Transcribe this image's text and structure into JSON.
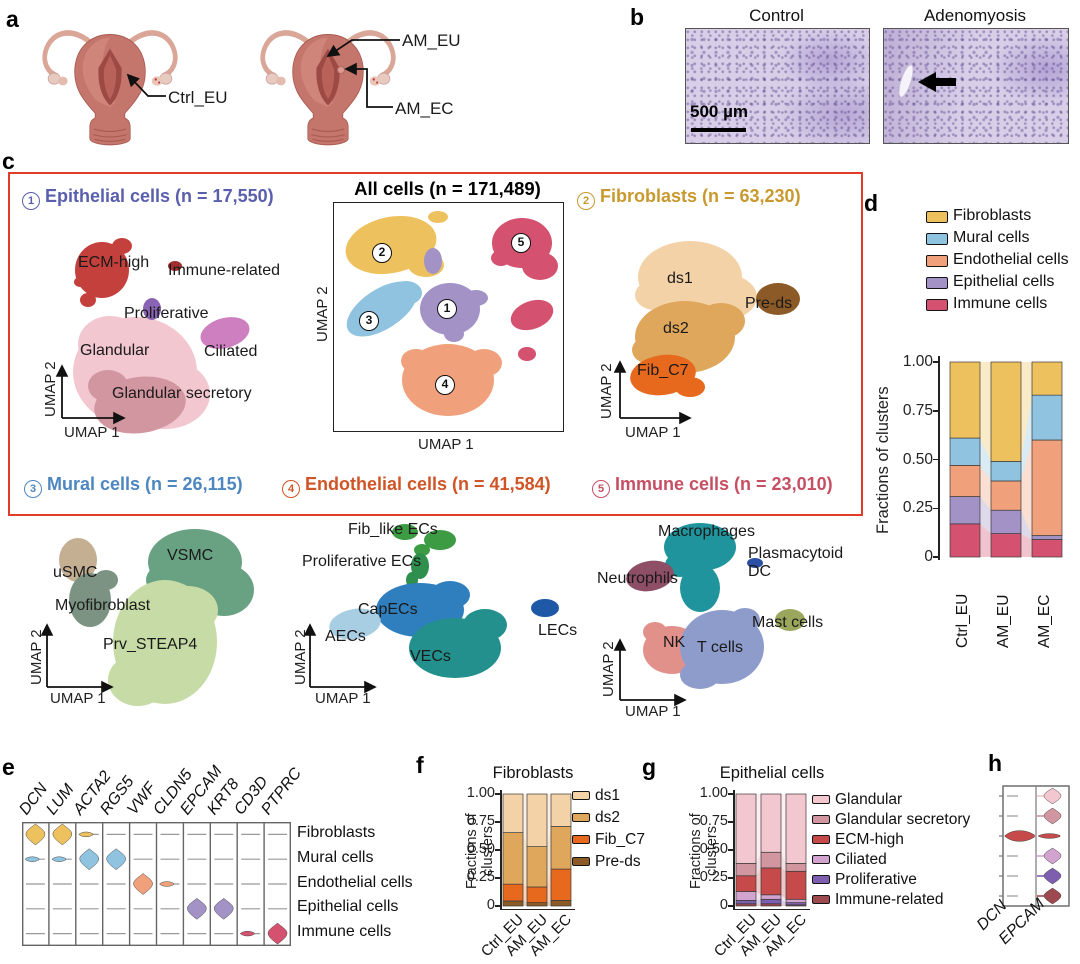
{
  "panel_labels": {
    "a": "a",
    "b": "b",
    "c": "c",
    "d": "d",
    "e": "e",
    "f": "f",
    "g": "g",
    "h": "h"
  },
  "panel_a": {
    "ctrl": "Ctrl_EU",
    "am_eu": "AM_EU",
    "am_ec": "AM_EC"
  },
  "panel_b": {
    "left_title": "Control",
    "right_title": "Adenomyosis",
    "scale_bar": "500 µm"
  },
  "panel_c": {
    "headers": [
      {
        "num": "1",
        "text": "Epithelial cells (n = 17,550)",
        "color": "#5a5fad"
      },
      {
        "num": "2",
        "text": "Fibroblasts (n = 63,230)",
        "color": "#c8992f"
      },
      {
        "num": "3",
        "text": "Mural cells (n = 26,115)",
        "color": "#4e86c0"
      },
      {
        "num": "4",
        "text": "Endothelial cells (n = 41,584)",
        "color": "#cf5527"
      },
      {
        "num": "5",
        "text": "Immune cells (n = 23,010)",
        "color": "#c64f63"
      }
    ],
    "all_cells": {
      "title": "All cells (n = 171,489)",
      "clusters": [
        {
          "num": "1",
          "color": "#a292c5"
        },
        {
          "num": "2",
          "color": "#eec15f"
        },
        {
          "num": "3",
          "color": "#90c3df"
        },
        {
          "num": "4",
          "color": "#f0a17c"
        },
        {
          "num": "5",
          "color": "#d4516f"
        }
      ]
    },
    "axis": {
      "x": "UMAP 1",
      "y": "UMAP 2"
    },
    "epithelial": [
      {
        "label": "ECM-high",
        "color": "#c4403d"
      },
      {
        "label": "Immune-related",
        "color": "#a03030"
      },
      {
        "label": "Proliferative",
        "color": "#8a63b4"
      },
      {
        "label": "Ciliated",
        "color": "#cd7fc0"
      },
      {
        "label": "Glandular",
        "color": "#f2c7d0"
      },
      {
        "label": "Glandular secretory",
        "color": "#d296a0"
      }
    ],
    "fibroblast": [
      {
        "label": "ds1",
        "color": "#f4d2a8"
      },
      {
        "label": "ds2",
        "color": "#dfa75c"
      },
      {
        "label": "Fib_C7",
        "color": "#e7691d"
      },
      {
        "label": "Pre-ds",
        "color": "#8c5a26"
      }
    ],
    "mural": [
      {
        "label": "uSMC",
        "color": "#c4af92"
      },
      {
        "label": "Myofibroblast",
        "color": "#7c9383"
      },
      {
        "label": "VSMC",
        "color": "#69a183"
      },
      {
        "label": "Prv_STEAP4",
        "color": "#c6dba5"
      }
    ],
    "endothelial": [
      {
        "label": "Fib_like ECs",
        "color": "#3d9b43"
      },
      {
        "label": "Proliferative ECs",
        "color": "#2f8f4d"
      },
      {
        "label": "CapECs",
        "color": "#2f7fbf"
      },
      {
        "label": "AECs",
        "color": "#a8cee4"
      },
      {
        "label": "VECs",
        "color": "#23908d"
      },
      {
        "label": "LECs",
        "color": "#2058a8"
      }
    ],
    "immune": [
      {
        "label": "Macrophages",
        "color": "#1f949d"
      },
      {
        "label": "Plasmacytoid DC",
        "color": "#2b4fa2"
      },
      {
        "label": "Neutrophils",
        "color": "#8d4e66"
      },
      {
        "label": "Mast cells",
        "color": "#9aa75c"
      },
      {
        "label": "NK",
        "color": "#e2908a"
      },
      {
        "label": "T cells",
        "color": "#8e9ccb"
      }
    ]
  },
  "chart_data": [
    {
      "id": "d",
      "type": "stacked-bar",
      "title": "",
      "ylabel": "Fractions of clusters",
      "ylim": [
        0,
        1
      ],
      "yticks": [
        "1.00",
        "0.75",
        "0.50",
        "0.25",
        "0"
      ],
      "categories": [
        "Ctrl_EU",
        "AM_EU",
        "AM_EC"
      ],
      "series": [
        {
          "name": "Fibroblasts",
          "color": "#eec15f",
          "values": [
            0.39,
            0.51,
            0.17
          ]
        },
        {
          "name": "Mural cells",
          "color": "#90c3df",
          "values": [
            0.14,
            0.1,
            0.23
          ]
        },
        {
          "name": "Endothelial cells",
          "color": "#f0a17c",
          "values": [
            0.16,
            0.15,
            0.49
          ]
        },
        {
          "name": "Epithelial cells",
          "color": "#a292c5",
          "values": [
            0.14,
            0.12,
            0.02
          ]
        },
        {
          "name": "Immune cells",
          "color": "#d4516f",
          "values": [
            0.17,
            0.12,
            0.09
          ]
        }
      ]
    },
    {
      "id": "f",
      "type": "stacked-bar",
      "title": "Fibroblasts",
      "ylabel": "Fractions of clusters",
      "ylim": [
        0,
        1
      ],
      "yticks": [
        "1.00",
        "0.75",
        "0.50",
        "0.25",
        "0"
      ],
      "categories": [
        "Ctrl_EU",
        "AM_EU",
        "AM_EC"
      ],
      "series": [
        {
          "name": "ds1",
          "color": "#f4d2a8",
          "values": [
            0.345,
            0.47,
            0.29
          ]
        },
        {
          "name": "ds2",
          "color": "#dfa75c",
          "values": [
            0.46,
            0.36,
            0.38
          ]
        },
        {
          "name": "Fib_C7",
          "color": "#e7691d",
          "values": [
            0.15,
            0.14,
            0.28
          ]
        },
        {
          "name": "Pre-ds",
          "color": "#8c5a26",
          "values": [
            0.045,
            0.03,
            0.05
          ]
        }
      ]
    },
    {
      "id": "g",
      "type": "stacked-bar",
      "title": "Epithelial cells",
      "ylabel": "Fractions of clusters",
      "ylim": [
        0,
        1
      ],
      "yticks": [
        "1.00",
        "0.75",
        "0.50",
        "0.25",
        "0"
      ],
      "categories": [
        "Ctrl_EU",
        "AM_EU",
        "AM_EC"
      ],
      "series": [
        {
          "name": "Glandular",
          "color": "#f2c7d0",
          "values": [
            0.62,
            0.52,
            0.62
          ]
        },
        {
          "name": "Glandular secretory",
          "color": "#d296a0",
          "values": [
            0.11,
            0.14,
            0.07
          ]
        },
        {
          "name": "ECM-high",
          "color": "#c74a4a",
          "values": [
            0.14,
            0.24,
            0.25
          ]
        },
        {
          "name": "Ciliated",
          "color": "#d1a3ce",
          "values": [
            0.08,
            0.04,
            0.03
          ]
        },
        {
          "name": "Proliferative",
          "color": "#7e5eaf",
          "values": [
            0.03,
            0.04,
            0.02
          ]
        },
        {
          "name": "Immune-related",
          "color": "#9e4950",
          "values": [
            0.02,
            0.02,
            0.01
          ]
        }
      ]
    },
    {
      "id": "e",
      "type": "violin-grid",
      "genes": [
        "DCN",
        "LUM",
        "ACTA2",
        "RGS5",
        "VWF",
        "CLDN5",
        "EPCAM",
        "KRT8",
        "CD3D",
        "PTPRC"
      ],
      "rows": [
        {
          "label": "Fibroblasts",
          "color": "#eec15f"
        },
        {
          "label": "Mural cells",
          "color": "#90c3df"
        },
        {
          "label": "Endothelial cells",
          "color": "#f0a17c"
        },
        {
          "label": "Epithelial cells",
          "color": "#a292c5"
        },
        {
          "label": "Immune cells",
          "color": "#d4516f"
        }
      ],
      "matrix": [
        "ffs.......",
        "ssff......",
        "....fs....",
        "......ff..",
        "........sf"
      ]
    },
    {
      "id": "h",
      "type": "violin-grid",
      "genes": [
        "DCN",
        "EPCAM"
      ],
      "rows": [
        {
          "label": "Glandular",
          "color": "#f2c7d0"
        },
        {
          "label": "Glandular secretory",
          "color": "#d296a0"
        },
        {
          "label": "ECM-high",
          "color": "#c74a4a"
        },
        {
          "label": "Ciliated",
          "color": "#d1a3ce"
        },
        {
          "label": "Proliferative",
          "color": "#7e5eaf"
        },
        {
          "label": "Immune-related",
          "color": "#9e4950"
        }
      ],
      "dcn": [
        ".",
        ".",
        "w",
        ".",
        ".",
        "."
      ],
      "epcam": [
        "f",
        "f",
        "s",
        "f",
        "f",
        "f"
      ]
    }
  ]
}
